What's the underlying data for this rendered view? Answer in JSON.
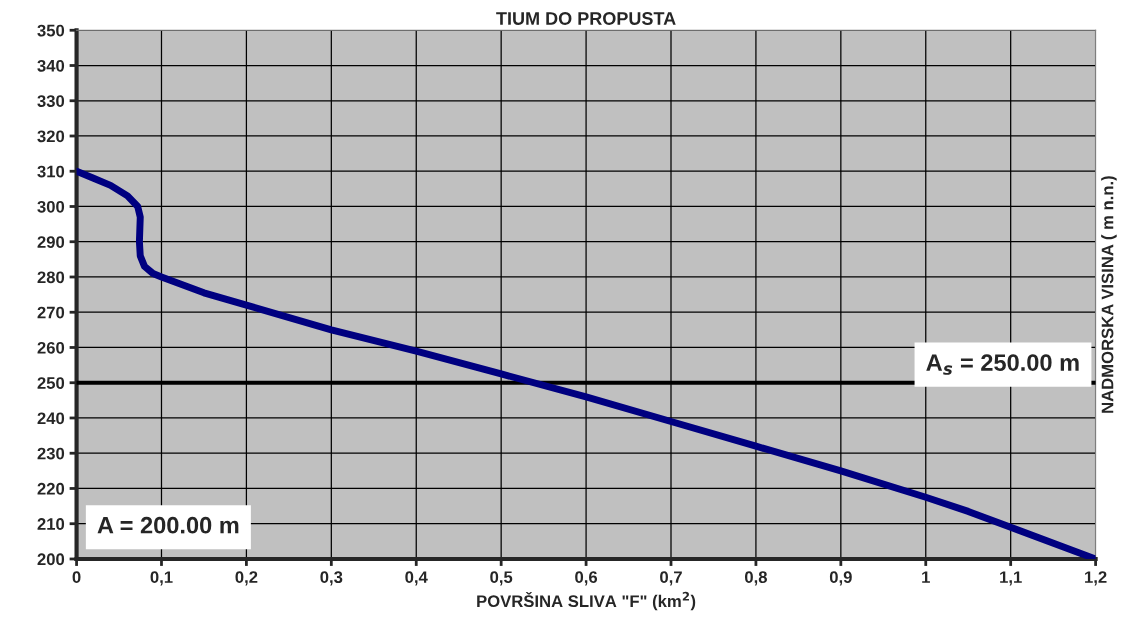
{
  "chart_data": {
    "type": "line",
    "title": "TIUM DO PROPUSTA",
    "xlabel": "POVRŠINA SLIVA \"F\" (km$^{2}$)",
    "ylabel": "NADMORSKA VISINA ( m n.n.)",
    "x": [
      0,
      0.02,
      0.04,
      0.06,
      0.072,
      0.075,
      0.074,
      0.075,
      0.08,
      0.09,
      0.1,
      0.15,
      0.2,
      0.3,
      0.4,
      0.5,
      0.6,
      0.7,
      0.8,
      0.9,
      1.0,
      1.05,
      1.1,
      1.2
    ],
    "series": [
      {
        "color": "#000080",
        "values": [
          310,
          308,
          306,
          303,
          300,
          297,
          290,
          286,
          283,
          281,
          280,
          275.5,
          272,
          265,
          259,
          252.5,
          246,
          239,
          232,
          225,
          217.5,
          213.5,
          209,
          200
        ]
      }
    ],
    "xlim": [
      0,
      1.2
    ],
    "xticks": [
      0,
      {
        "value": 0.1,
        "label": "0,1"
      },
      {
        "value": 0.2,
        "label": "0,2"
      },
      {
        "value": 0.3,
        "label": "0,3"
      },
      {
        "value": 0.4,
        "label": "0,4"
      },
      {
        "value": 0.5,
        "label": "0,5"
      },
      {
        "value": 0.6,
        "label": "0,6"
      },
      {
        "value": 0.7,
        "label": "0,7"
      },
      {
        "value": 0.8,
        "label": "0,8"
      },
      {
        "value": 0.9,
        "label": "0,9"
      },
      1,
      {
        "value": 1.1,
        "label": "1,1"
      },
      {
        "value": 1.2,
        "label": "1,2"
      }
    ],
    "ylim": [
      200,
      350
    ],
    "yticks": [
      200,
      210,
      220,
      230,
      240,
      250,
      260,
      270,
      280,
      290,
      300,
      310,
      320,
      330,
      340,
      350
    ],
    "ref_lines": [
      {
        "axis": "y",
        "value": 250,
        "label": "A$_{s}$ = 250.00 m",
        "color": "#000000"
      }
    ],
    "annotations": [
      "A = 200.00 m"
    ],
    "grid": true,
    "marker": "none",
    "line_style": "solid",
    "legend": false
  }
}
